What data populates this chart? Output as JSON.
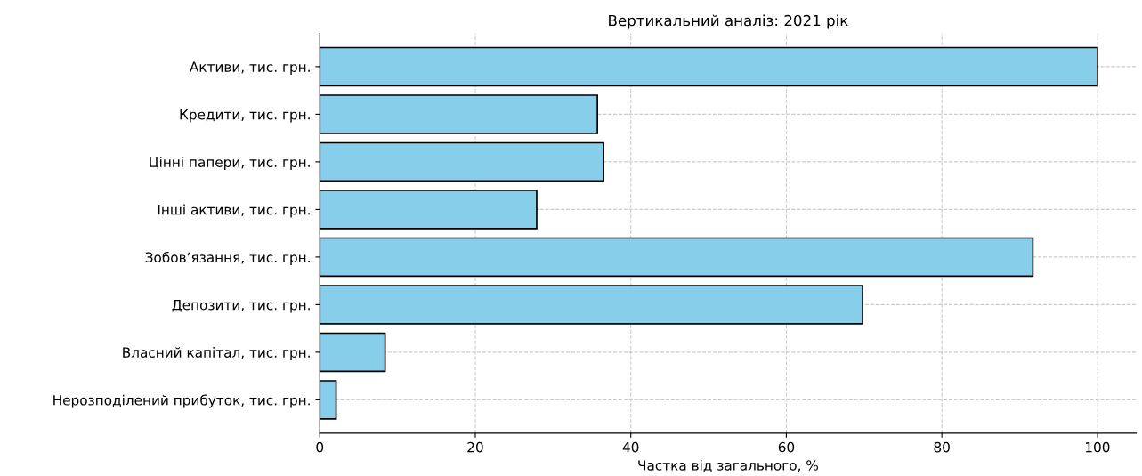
{
  "chart_data": {
    "type": "bar",
    "orientation": "horizontal",
    "title": "Вертикальний аналіз: 2021 рік",
    "xlabel": "Частка від загального, %",
    "categories": [
      "Активи, тис. грн.",
      "Кредити, тис. грн.",
      "Цінні папери, тис. грн.",
      "Інші активи, тис. грн.",
      "Зобов’язання, тис. грн.",
      "Депозити, тис. грн.",
      "Власний капітал, тис. грн.",
      "Нерозподілений прибуток, тис. грн."
    ],
    "values": [
      100,
      35.7,
      36.5,
      27.9,
      91.7,
      69.8,
      8.4,
      2.1
    ],
    "color": "#87ceeb",
    "xlim": [
      0,
      105
    ],
    "xticks": [
      0,
      20,
      40,
      60,
      80,
      100
    ],
    "grid": true
  }
}
